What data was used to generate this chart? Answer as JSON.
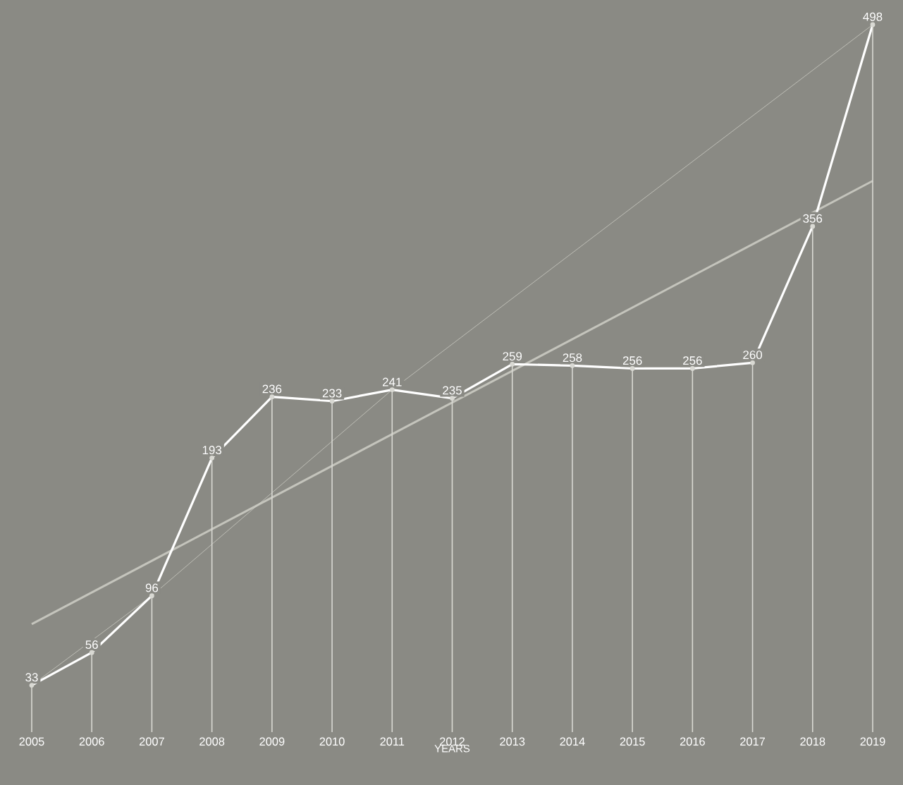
{
  "chart_data": {
    "type": "line",
    "xlabel": "YEARS",
    "x": [
      2005,
      2006,
      2007,
      2008,
      2009,
      2010,
      2011,
      2012,
      2013,
      2014,
      2015,
      2016,
      2017,
      2018,
      2019
    ],
    "xlim": [
      2005,
      2019
    ],
    "xticks": [
      2005,
      2006,
      2007,
      2008,
      2009,
      2010,
      2011,
      2012,
      2013,
      2014,
      2015,
      2016,
      2017,
      2018,
      2019
    ],
    "tick_labels": "x",
    "marker": "none",
    "series": [
      {
        "type": "line",
        "color": "#c4c4bc",
        "x": [
          2005,
          2019
        ],
        "values": [
          76,
          388
        ]
      },
      {
        "type": "line",
        "color": "#d4d4cc",
        "x": [
          2005,
          2007,
          2011,
          2019
        ],
        "values": [
          33,
          96,
          241,
          498
        ]
      },
      {
        "color": "#ffffff",
        "values": [
          33,
          56,
          96,
          193,
          236,
          233,
          241,
          235,
          259,
          258,
          256,
          256,
          260,
          356,
          498
        ],
        "value_labels": [
          "33",
          "56",
          "96",
          "193",
          "236",
          "233",
          "241",
          "235",
          "259",
          "258",
          "256",
          "256",
          "260",
          "356",
          "498"
        ]
      },
      {
        "type": "lollipop",
        "marker": "circle",
        "color": "#d9d9d3",
        "values": [
          33,
          56,
          96,
          193,
          236,
          233,
          241,
          235,
          259,
          258,
          256,
          256,
          260,
          356,
          498
        ]
      }
    ]
  }
}
